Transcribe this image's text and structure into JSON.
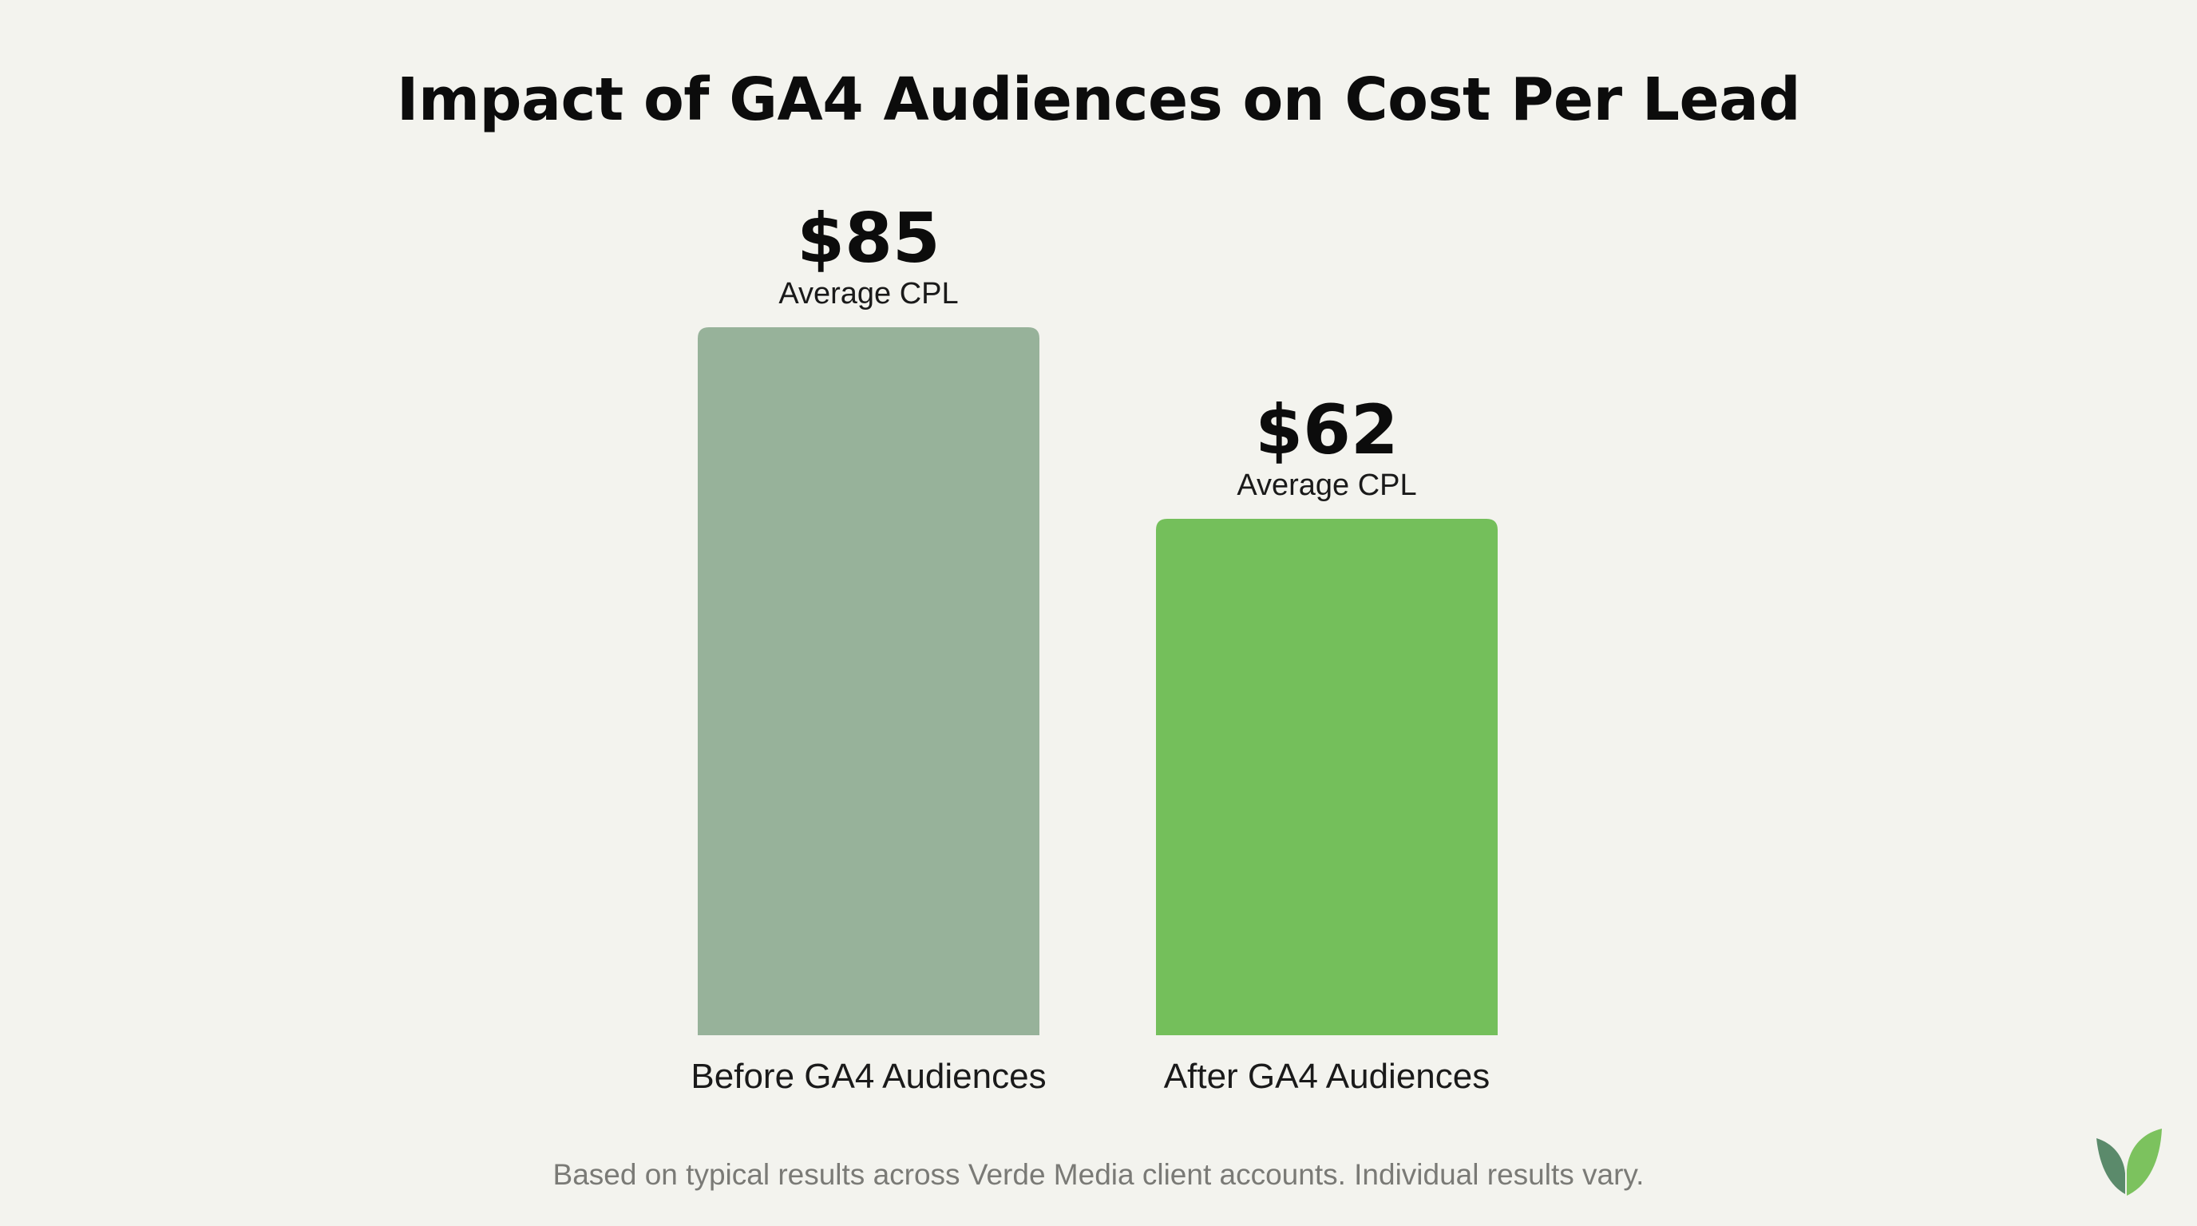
{
  "chart_data": {
    "type": "bar",
    "title": "Impact of GA4 Audiences on Cost Per Lead",
    "categories": [
      "Before GA4 Audiences",
      "After GA4 Audiences"
    ],
    "values": [
      85,
      62
    ],
    "value_labels": [
      "$85",
      "$62"
    ],
    "sub_label": "Average CPL",
    "bar_colors": [
      "#97b29a",
      "#74bf5b"
    ],
    "xlabel": "",
    "ylabel": "",
    "ylim": [
      0,
      85
    ],
    "grid": false,
    "legend": "none"
  },
  "footnote": "Based on typical results across Verde Media client accounts. Individual results vary.",
  "logo": {
    "icon": "leaf-icon",
    "colors": [
      "#5b8a6b",
      "#7cc25e"
    ]
  }
}
